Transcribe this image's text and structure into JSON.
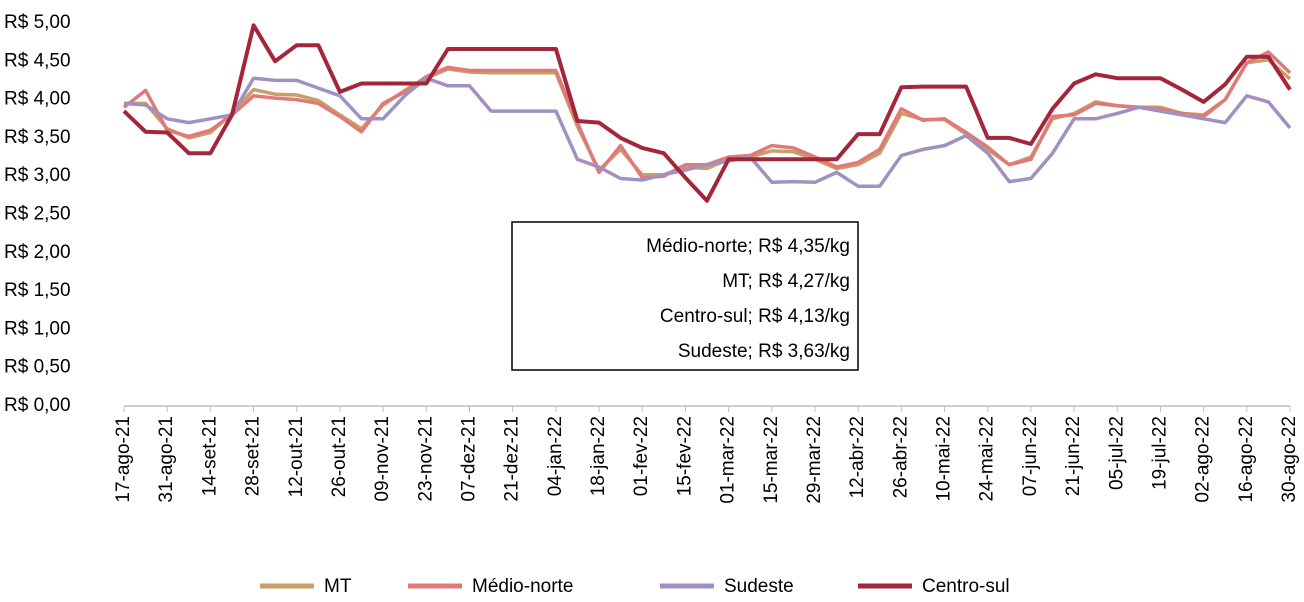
{
  "chart_data": {
    "type": "line",
    "categories": [
      "17-ago-21",
      null,
      "31-ago-21",
      null,
      "14-set-21",
      null,
      "28-set-21",
      null,
      "12-out-21",
      null,
      "26-out-21",
      null,
      "09-nov-21",
      null,
      "23-nov-21",
      null,
      "07-dez-21",
      null,
      "21-dez-21",
      null,
      "04-jan-22",
      null,
      "18-jan-22",
      null,
      "01-fev-22",
      null,
      "15-fev-22",
      null,
      "01-mar-22",
      null,
      "15-mar-22",
      null,
      "29-mar-22",
      null,
      "12-abr-22",
      null,
      "26-abr-22",
      null,
      "10-mai-22",
      null,
      "24-mai-22",
      null,
      "07-jun-22",
      null,
      "21-jun-22",
      null,
      "05-jul-22",
      null,
      "19-jul-22",
      null,
      "02-ago-22",
      null,
      "16-ago-22",
      null,
      "30-ago-22"
    ],
    "series": [
      {
        "name": "MT",
        "color": "#c9a063",
        "values": [
          3.95,
          3.95,
          3.62,
          3.5,
          3.57,
          3.82,
          4.13,
          4.07,
          4.06,
          3.99,
          3.8,
          3.62,
          3.93,
          4.12,
          4.28,
          4.4,
          4.36,
          4.35,
          4.35,
          4.35,
          4.35,
          3.65,
          3.08,
          3.35,
          3.02,
          3.02,
          3.12,
          3.1,
          3.22,
          3.25,
          3.33,
          3.32,
          3.22,
          3.1,
          3.15,
          3.3,
          3.82,
          3.74,
          3.74,
          3.55,
          3.35,
          3.15,
          3.25,
          3.75,
          3.82,
          3.97,
          3.92,
          3.9,
          3.9,
          3.82,
          3.8,
          4.0,
          4.48,
          4.52,
          4.27
        ]
      },
      {
        "name": "Médio-norte",
        "color": "#e07a7a",
        "values": [
          3.9,
          4.12,
          3.6,
          3.52,
          3.6,
          3.8,
          4.05,
          4.02,
          4.0,
          3.95,
          3.78,
          3.58,
          3.95,
          4.1,
          4.3,
          4.42,
          4.38,
          4.38,
          4.38,
          4.38,
          4.38,
          3.7,
          3.05,
          3.4,
          2.98,
          3.0,
          3.15,
          3.15,
          3.25,
          3.27,
          3.4,
          3.37,
          3.25,
          3.12,
          3.18,
          3.35,
          3.88,
          3.73,
          3.75,
          3.57,
          3.38,
          3.15,
          3.22,
          3.78,
          3.8,
          3.95,
          3.92,
          3.9,
          3.88,
          3.82,
          3.78,
          4.0,
          4.48,
          4.62,
          4.35
        ]
      },
      {
        "name": "Sudeste",
        "color": "#a291c0",
        "values": [
          3.95,
          3.93,
          3.75,
          3.7,
          3.75,
          3.8,
          4.28,
          4.25,
          4.25,
          4.15,
          4.05,
          3.75,
          3.75,
          4.05,
          4.28,
          4.18,
          4.18,
          3.85,
          3.85,
          3.85,
          3.85,
          3.22,
          3.12,
          2.97,
          2.95,
          3.02,
          3.08,
          3.15,
          3.2,
          3.25,
          2.92,
          2.93,
          2.92,
          3.05,
          2.87,
          2.87,
          3.27,
          3.35,
          3.4,
          3.53,
          3.3,
          2.93,
          2.97,
          3.3,
          3.75,
          3.75,
          3.82,
          3.9,
          3.85,
          3.8,
          3.75,
          3.7,
          4.05,
          3.97,
          3.63
        ]
      },
      {
        "name": "Centro-sul",
        "color": "#a3263a",
        "values": [
          3.85,
          3.58,
          3.57,
          3.3,
          3.3,
          3.8,
          4.97,
          4.5,
          4.71,
          4.71,
          4.1,
          4.21,
          4.21,
          4.21,
          4.21,
          4.66,
          4.66,
          4.66,
          4.66,
          4.66,
          4.66,
          3.72,
          3.7,
          3.5,
          3.37,
          3.3,
          2.98,
          2.68,
          3.22,
          3.22,
          3.22,
          3.22,
          3.22,
          3.22,
          3.55,
          3.55,
          4.16,
          4.17,
          4.17,
          4.17,
          3.5,
          3.5,
          3.42,
          3.88,
          4.21,
          4.33,
          4.28,
          4.28,
          4.28,
          4.13,
          3.97,
          4.2,
          4.56,
          4.56,
          4.13
        ]
      }
    ],
    "ylim": [
      0,
      5
    ],
    "yticks": [
      {
        "value": 0,
        "label": "R$ 0,00"
      },
      {
        "value": 0.5,
        "label": "R$ 0,50"
      },
      {
        "value": 1,
        "label": "R$ 1,00"
      },
      {
        "value": 1.5,
        "label": "R$ 1,50"
      },
      {
        "value": 2,
        "label": "R$ 2,00"
      },
      {
        "value": 2.5,
        "label": "R$ 2,50"
      },
      {
        "value": 3,
        "label": "R$ 3,00"
      },
      {
        "value": 3.5,
        "label": "R$ 3,50"
      },
      {
        "value": 4,
        "label": "R$ 4,00"
      },
      {
        "value": 4.5,
        "label": "R$ 4,50"
      },
      {
        "value": 5,
        "label": "R$ 5,00"
      }
    ],
    "annotations": [
      "Médio-norte; R$ 4,35/kg",
      "MT; R$ 4,27/kg",
      "Centro-sul; R$ 4,13/kg",
      "Sudeste; R$ 3,63/kg"
    ],
    "grid": false,
    "legend": "bottom"
  }
}
